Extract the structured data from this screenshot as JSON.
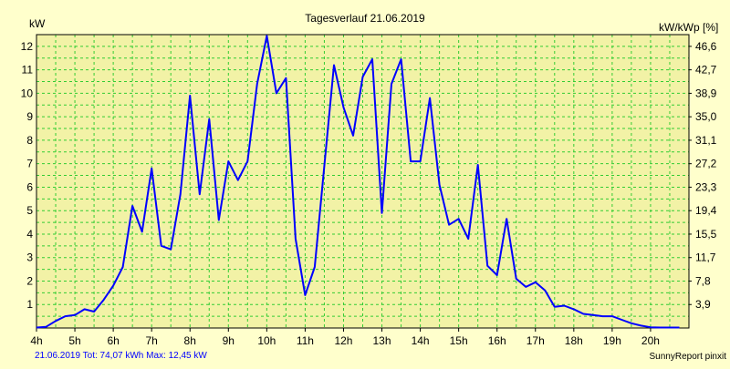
{
  "chart_data": {
    "type": "line",
    "title": "Tagesverlauf 21.06.2019",
    "ylabel_left": "kW",
    "ylabel_right": "kW/kWp [%]",
    "x_unit": "h",
    "xlim": [
      4,
      21
    ],
    "ylim": [
      0,
      12.5
    ],
    "x_tick_labels": [
      "4h",
      "5h",
      "6h",
      "7h",
      "8h",
      "9h",
      "10h",
      "11h",
      "12h",
      "13h",
      "14h",
      "15h",
      "16h",
      "17h",
      "18h",
      "19h",
      "20h"
    ],
    "y_ticks_left": [
      1,
      2,
      3,
      4,
      5,
      6,
      7,
      8,
      9,
      10,
      11,
      12
    ],
    "y_ticks_right": [
      "3,9",
      "7,8",
      "11,7",
      "15,5",
      "19,4",
      "23,3",
      "27,2",
      "31,1",
      "35,0",
      "38,9",
      "42,7",
      "46,6"
    ],
    "grid": true,
    "colors": {
      "background": "#ffffcc",
      "plot_background": "#f2f2a6",
      "grid": "#33cc33",
      "line": "#0000ff",
      "footer_text": "#0000ff"
    },
    "series": [
      {
        "color": "#0000ff",
        "x": [
          4.0,
          4.25,
          4.5,
          4.75,
          5.0,
          5.25,
          5.5,
          5.75,
          6.0,
          6.25,
          6.5,
          6.75,
          7.0,
          7.25,
          7.5,
          7.75,
          8.0,
          8.25,
          8.5,
          8.75,
          9.0,
          9.25,
          9.5,
          9.75,
          10.0,
          10.25,
          10.5,
          10.75,
          11.0,
          11.25,
          11.5,
          11.75,
          12.0,
          12.25,
          12.5,
          12.75,
          13.0,
          13.25,
          13.5,
          13.75,
          14.0,
          14.25,
          14.5,
          14.75,
          15.0,
          15.25,
          15.5,
          15.75,
          16.0,
          16.25,
          16.5,
          16.75,
          17.0,
          17.25,
          17.5,
          17.75,
          18.0,
          18.25,
          18.5,
          18.75,
          19.0,
          19.25,
          19.5,
          19.75,
          20.0,
          20.25,
          20.5,
          20.75
        ],
        "y": [
          0.02,
          0.05,
          0.3,
          0.5,
          0.55,
          0.8,
          0.7,
          1.2,
          1.8,
          2.6,
          5.2,
          4.1,
          6.8,
          3.5,
          3.35,
          5.7,
          9.9,
          5.7,
          8.9,
          4.6,
          7.1,
          6.3,
          7.1,
          10.4,
          12.45,
          10.0,
          10.65,
          3.8,
          1.4,
          2.6,
          6.9,
          11.2,
          9.4,
          8.2,
          10.7,
          11.45,
          4.9,
          10.4,
          11.45,
          7.1,
          7.1,
          9.8,
          6.1,
          4.4,
          4.65,
          3.8,
          6.95,
          2.65,
          2.25,
          4.65,
          2.1,
          1.75,
          1.95,
          1.6,
          0.9,
          0.95,
          0.8,
          0.6,
          0.55,
          0.5,
          0.5,
          0.35,
          0.2,
          0.1,
          0.03,
          0.02,
          0.02,
          0.02
        ]
      }
    ]
  },
  "footer": {
    "left": "21.06.2019 Tot: 74,07 kWh Max: 12,45 kW",
    "right": "SunnyReport pinxit"
  }
}
